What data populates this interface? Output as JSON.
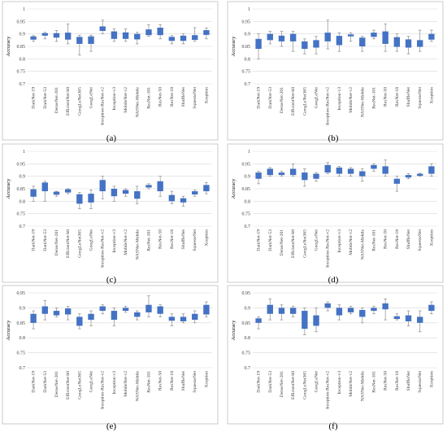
{
  "figure": {
    "panel_labels": [
      "(a)",
      "(b)",
      "(c)",
      "(d)",
      "(e)",
      "(f)"
    ]
  },
  "colors": {
    "box_fill": "#4472c4",
    "whisker": "#8c8c8c",
    "grid": "#d9d9d9",
    "frame": "#bfbfbf",
    "text": "#404040"
  },
  "chart_data": [
    {
      "type": "box",
      "panel": "(a)",
      "ylabel": "Accuracy",
      "ylim": [
        0.7,
        1
      ],
      "yticks": [
        "0.7",
        "0.75",
        "0.8",
        "0.85",
        "0.9",
        "0.95",
        "1"
      ],
      "grid": true,
      "categories": [
        "DarkNet-19",
        "DarkNet-53",
        "DenseNet-201",
        "EfficientNet-b0",
        "GoogLeNet365",
        "GoogLeNet",
        "Inception-ResNet-v2",
        "Inception-v3",
        "MobileNet-v2",
        "NASNet-Mobile",
        "ResNet-101",
        "ResNet-50",
        "ResNet-18",
        "ShuffleNet",
        "SqueezeNet",
        "Xception"
      ],
      "boxes": [
        {
          "min": 0.87,
          "q1": 0.877,
          "q3": 0.89,
          "max": 0.893
        },
        {
          "min": 0.88,
          "q1": 0.893,
          "q3": 0.903,
          "max": 0.906
        },
        {
          "min": 0.87,
          "q1": 0.885,
          "q3": 0.903,
          "max": 0.914
        },
        {
          "min": 0.86,
          "q1": 0.877,
          "q3": 0.905,
          "max": 0.94
        },
        {
          "min": 0.815,
          "q1": 0.86,
          "q3": 0.888,
          "max": 0.895
        },
        {
          "min": 0.83,
          "q1": 0.86,
          "q3": 0.89,
          "max": 0.895
        },
        {
          "min": 0.9,
          "q1": 0.912,
          "q3": 0.93,
          "max": 0.955
        },
        {
          "min": 0.87,
          "q1": 0.88,
          "q3": 0.91,
          "max": 0.92
        },
        {
          "min": 0.87,
          "q1": 0.88,
          "q3": 0.906,
          "max": 0.92
        },
        {
          "min": 0.86,
          "q1": 0.878,
          "q3": 0.9,
          "max": 0.906
        },
        {
          "min": 0.89,
          "q1": 0.895,
          "q3": 0.918,
          "max": 0.937
        },
        {
          "min": 0.88,
          "q1": 0.895,
          "q3": 0.925,
          "max": 0.937
        },
        {
          "min": 0.86,
          "q1": 0.872,
          "q3": 0.888,
          "max": 0.893
        },
        {
          "min": 0.86,
          "q1": 0.872,
          "q3": 0.893,
          "max": 0.9
        },
        {
          "min": 0.87,
          "q1": 0.876,
          "q3": 0.895,
          "max": 0.925
        },
        {
          "min": 0.88,
          "q1": 0.896,
          "q3": 0.915,
          "max": 0.924
        }
      ]
    },
    {
      "type": "box",
      "panel": "(b)",
      "ylabel": "Accuracy",
      "ylim": [
        0.7,
        1
      ],
      "yticks": [
        "0.7",
        "0.75",
        "0.8",
        "0.85",
        "0.9",
        "0.95",
        "1"
      ],
      "grid": true,
      "categories": [
        "DarkNet-19",
        "DarkNet-53",
        "DenseNet-201",
        "EfficientNet-b0",
        "GoogLeNet365",
        "GoogLeNet",
        "Inception-ResNet-v2",
        "Inception-v3",
        "MobileNet-v2",
        "NASNet-Mobile",
        "ResNet-101",
        "ResNet-50",
        "ResNet-18",
        "ShuffleNet",
        "SqueezeNet",
        "Xception"
      ],
      "boxes": [
        {
          "min": 0.8,
          "q1": 0.84,
          "q3": 0.88,
          "max": 0.9
        },
        {
          "min": 0.86,
          "q1": 0.875,
          "q3": 0.9,
          "max": 0.91
        },
        {
          "min": 0.85,
          "q1": 0.87,
          "q3": 0.893,
          "max": 0.91
        },
        {
          "min": 0.83,
          "q1": 0.87,
          "q3": 0.9,
          "max": 0.91
        },
        {
          "min": 0.82,
          "q1": 0.84,
          "q3": 0.87,
          "max": 0.88
        },
        {
          "min": 0.82,
          "q1": 0.845,
          "q3": 0.875,
          "max": 0.89
        },
        {
          "min": 0.84,
          "q1": 0.87,
          "q3": 0.905,
          "max": 0.955
        },
        {
          "min": 0.83,
          "q1": 0.855,
          "q3": 0.892,
          "max": 0.905
        },
        {
          "min": 0.87,
          "q1": 0.89,
          "q3": 0.898,
          "max": 0.905
        },
        {
          "min": 0.83,
          "q1": 0.85,
          "q3": 0.885,
          "max": 0.89
        },
        {
          "min": 0.88,
          "q1": 0.888,
          "q3": 0.905,
          "max": 0.915
        },
        {
          "min": 0.83,
          "q1": 0.86,
          "q3": 0.91,
          "max": 0.94
        },
        {
          "min": 0.83,
          "q1": 0.848,
          "q3": 0.887,
          "max": 0.9
        },
        {
          "min": 0.82,
          "q1": 0.845,
          "q3": 0.878,
          "max": 0.89
        },
        {
          "min": 0.83,
          "q1": 0.848,
          "q3": 0.875,
          "max": 0.915
        },
        {
          "min": 0.87,
          "q1": 0.877,
          "q3": 0.9,
          "max": 0.915
        }
      ]
    },
    {
      "type": "box",
      "panel": "(c)",
      "ylabel": "Accuracy",
      "ylim": [
        0.7,
        1
      ],
      "yticks": [
        "0.7",
        "0.75",
        "0.8",
        "0.85",
        "0.9",
        "0.95",
        "1"
      ],
      "grid": true,
      "categories": [
        "DarkNet-19",
        "DarkNet-53",
        "DenseNet-201",
        "EfficientNet-b0",
        "GoogLeNet365",
        "GoogLeNet",
        "Inception-ResNet-v2",
        "Inception-v3",
        "MobileNet-v2",
        "NASNet-Mobile",
        "ResNet-101",
        "ResNet-50",
        "ResNet-18",
        "ShuffleNet",
        "SqueezeNet",
        "Xception"
      ],
      "boxes": [
        {
          "min": 0.8,
          "q1": 0.818,
          "q3": 0.848,
          "max": 0.86
        },
        {
          "min": 0.8,
          "q1": 0.84,
          "q3": 0.875,
          "max": 0.88
        },
        {
          "min": 0.82,
          "q1": 0.826,
          "q3": 0.838,
          "max": 0.84
        },
        {
          "min": 0.83,
          "q1": 0.835,
          "q3": 0.848,
          "max": 0.85
        },
        {
          "min": 0.77,
          "q1": 0.79,
          "q3": 0.828,
          "max": 0.835
        },
        {
          "min": 0.77,
          "q1": 0.795,
          "q3": 0.83,
          "max": 0.845
        },
        {
          "min": 0.81,
          "q1": 0.84,
          "q3": 0.885,
          "max": 0.9
        },
        {
          "min": 0.8,
          "q1": 0.82,
          "q3": 0.85,
          "max": 0.86
        },
        {
          "min": 0.82,
          "q1": 0.83,
          "q3": 0.845,
          "max": 0.85
        },
        {
          "min": 0.79,
          "q1": 0.81,
          "q3": 0.84,
          "max": 0.86
        },
        {
          "min": 0.85,
          "q1": 0.855,
          "q3": 0.865,
          "max": 0.87
        },
        {
          "min": 0.82,
          "q1": 0.84,
          "q3": 0.88,
          "max": 0.9
        },
        {
          "min": 0.79,
          "q1": 0.8,
          "q3": 0.825,
          "max": 0.84
        },
        {
          "min": 0.78,
          "q1": 0.795,
          "q3": 0.812,
          "max": 0.82
        },
        {
          "min": 0.82,
          "q1": 0.827,
          "q3": 0.84,
          "max": 0.845
        },
        {
          "min": 0.83,
          "q1": 0.84,
          "q3": 0.865,
          "max": 0.875
        }
      ]
    },
    {
      "type": "box",
      "panel": "(d)",
      "ylabel": "Accuracy",
      "ylim": [
        0.7,
        1
      ],
      "yticks": [
        "0.7",
        "0.75",
        "0.8",
        "0.85",
        "0.9",
        "0.95",
        "1"
      ],
      "grid": true,
      "categories": [
        "DarkNet-19",
        "DarkNet-53",
        "DenseNet-201",
        "EfficientNet-b0",
        "GoogLeNet365",
        "GoogLeNet",
        "Inception-ResNet-v2",
        "Inception-v3",
        "MobileNet-v2",
        "NASNet-Mobile",
        "ResNet-101",
        "ResNet-50",
        "ResNet-18",
        "ShuffleNet",
        "SqueezeNet",
        "Xception"
      ],
      "boxes": [
        {
          "min": 0.87,
          "q1": 0.89,
          "q3": 0.915,
          "max": 0.92
        },
        {
          "min": 0.9,
          "q1": 0.905,
          "q3": 0.93,
          "max": 0.935
        },
        {
          "min": 0.9,
          "q1": 0.905,
          "q3": 0.915,
          "max": 0.92
        },
        {
          "min": 0.9,
          "q1": 0.905,
          "q3": 0.93,
          "max": 0.95
        },
        {
          "min": 0.86,
          "q1": 0.885,
          "q3": 0.915,
          "max": 0.93
        },
        {
          "min": 0.88,
          "q1": 0.89,
          "q3": 0.91,
          "max": 0.915
        },
        {
          "min": 0.91,
          "q1": 0.915,
          "q3": 0.945,
          "max": 0.955
        },
        {
          "min": 0.9,
          "q1": 0.91,
          "q3": 0.935,
          "max": 0.94
        },
        {
          "min": 0.9,
          "q1": 0.91,
          "q3": 0.93,
          "max": 0.935
        },
        {
          "min": 0.88,
          "q1": 0.9,
          "q3": 0.92,
          "max": 0.93
        },
        {
          "min": 0.92,
          "q1": 0.93,
          "q3": 0.945,
          "max": 0.95
        },
        {
          "min": 0.9,
          "q1": 0.91,
          "q3": 0.94,
          "max": 0.965
        },
        {
          "min": 0.84,
          "q1": 0.87,
          "q3": 0.89,
          "max": 0.9
        },
        {
          "min": 0.89,
          "q1": 0.895,
          "q3": 0.905,
          "max": 0.91
        },
        {
          "min": 0.9,
          "q1": 0.902,
          "q3": 0.91,
          "max": 0.912
        },
        {
          "min": 0.9,
          "q1": 0.91,
          "q3": 0.94,
          "max": 0.95
        }
      ]
    },
    {
      "type": "box",
      "panel": "(e)",
      "ylabel": "Accuracy",
      "ylim": [
        0.7,
        0.95
      ],
      "yticks": [
        "0.7",
        "0.75",
        "0.8",
        "0.85",
        "0.9",
        "0.95"
      ],
      "grid": true,
      "categories": [
        "DarkNet-19",
        "DarkNet-53",
        "DenseNet-201",
        "EfficientNet-b0",
        "GoogLeNet365",
        "GoogLeNet",
        "Inception-ResNet-v2",
        "Inception-v3",
        "MobileNet-v2",
        "NASNet-Mobile",
        "ResNet-101",
        "ResNet-50",
        "ResNet-18",
        "ShuffleNet",
        "SqueezeNet",
        "Xception"
      ],
      "boxes": [
        {
          "min": 0.83,
          "q1": 0.85,
          "q3": 0.88,
          "max": 0.89
        },
        {
          "min": 0.86,
          "q1": 0.88,
          "q3": 0.905,
          "max": 0.925
        },
        {
          "min": 0.87,
          "q1": 0.875,
          "q3": 0.89,
          "max": 0.9
        },
        {
          "min": 0.86,
          "q1": 0.878,
          "q3": 0.898,
          "max": 0.905
        },
        {
          "min": 0.83,
          "q1": 0.84,
          "q3": 0.87,
          "max": 0.88
        },
        {
          "min": 0.84,
          "q1": 0.86,
          "q3": 0.88,
          "max": 0.89
        },
        {
          "min": 0.88,
          "q1": 0.89,
          "q3": 0.905,
          "max": 0.91
        },
        {
          "min": 0.84,
          "q1": 0.86,
          "q3": 0.89,
          "max": 0.9
        },
        {
          "min": 0.885,
          "q1": 0.89,
          "q3": 0.9,
          "max": 0.905
        },
        {
          "min": 0.86,
          "q1": 0.87,
          "q3": 0.885,
          "max": 0.89
        },
        {
          "min": 0.87,
          "q1": 0.885,
          "q3": 0.91,
          "max": 0.94
        },
        {
          "min": 0.87,
          "q1": 0.88,
          "q3": 0.905,
          "max": 0.91
        },
        {
          "min": 0.84,
          "q1": 0.857,
          "q3": 0.87,
          "max": 0.88
        },
        {
          "min": 0.85,
          "q1": 0.855,
          "q3": 0.87,
          "max": 0.88
        },
        {
          "min": 0.85,
          "q1": 0.86,
          "q3": 0.88,
          "max": 0.89
        },
        {
          "min": 0.87,
          "q1": 0.878,
          "q3": 0.91,
          "max": 0.92
        }
      ]
    },
    {
      "type": "box",
      "panel": "(f)",
      "ylabel": "Accuracy",
      "ylim": [
        0.7,
        0.95
      ],
      "yticks": [
        "0.7",
        "0.75",
        "0.8",
        "0.85",
        "0.9",
        "0.95"
      ],
      "grid": true,
      "categories": [
        "DarkNet-19",
        "DarkNet-53",
        "DenseNet-201",
        "EfficientNet-b0",
        "GoogLeNet365",
        "GoogLeNet",
        "Inception-ResNet-v2",
        "Inception-v3",
        "MobileNet-v2",
        "NASNet-Mobile",
        "ResNet-101",
        "ResNet-50",
        "ResNet-18",
        "ShuffleNet",
        "SqueezeNet",
        "Xception"
      ],
      "boxes": [
        {
          "min": 0.83,
          "q1": 0.85,
          "q3": 0.865,
          "max": 0.87
        },
        {
          "min": 0.86,
          "q1": 0.88,
          "q3": 0.91,
          "max": 0.93
        },
        {
          "min": 0.86,
          "q1": 0.88,
          "q3": 0.9,
          "max": 0.91
        },
        {
          "min": 0.87,
          "q1": 0.88,
          "q3": 0.9,
          "max": 0.905
        },
        {
          "min": 0.81,
          "q1": 0.83,
          "q3": 0.89,
          "max": 0.9
        },
        {
          "min": 0.82,
          "q1": 0.84,
          "q3": 0.875,
          "max": 0.9
        },
        {
          "min": 0.89,
          "q1": 0.9,
          "q3": 0.915,
          "max": 0.92
        },
        {
          "min": 0.86,
          "q1": 0.875,
          "q3": 0.9,
          "max": 0.91
        },
        {
          "min": 0.88,
          "q1": 0.885,
          "q3": 0.9,
          "max": 0.905
        },
        {
          "min": 0.85,
          "q1": 0.87,
          "q3": 0.893,
          "max": 0.9
        },
        {
          "min": 0.88,
          "q1": 0.89,
          "q3": 0.9,
          "max": 0.905
        },
        {
          "min": 0.86,
          "q1": 0.895,
          "q3": 0.915,
          "max": 0.93
        },
        {
          "min": 0.86,
          "q1": 0.863,
          "q3": 0.872,
          "max": 0.88
        },
        {
          "min": 0.84,
          "q1": 0.855,
          "q3": 0.875,
          "max": 0.89
        },
        {
          "min": 0.82,
          "q1": 0.85,
          "q3": 0.87,
          "max": 0.89
        },
        {
          "min": 0.88,
          "q1": 0.89,
          "q3": 0.91,
          "max": 0.92
        }
      ]
    }
  ]
}
